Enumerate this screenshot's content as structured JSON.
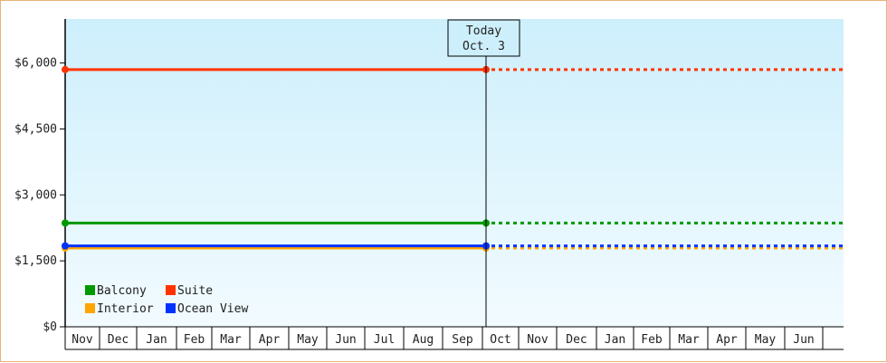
{
  "chart_data": {
    "type": "line",
    "title": "",
    "xlabel": "",
    "ylabel": "",
    "ylim": [
      0,
      7000
    ],
    "yticks": [
      {
        "value": 0,
        "label": "$0"
      },
      {
        "value": 1500,
        "label": "$1,500"
      },
      {
        "value": 3000,
        "label": "$3,000"
      },
      {
        "value": 4500,
        "label": "$4,500"
      },
      {
        "value": 6000,
        "label": "$6,000"
      }
    ],
    "months": [
      "Nov",
      "Dec",
      "Jan",
      "Feb",
      "Mar",
      "Apr",
      "May",
      "Jun",
      "Jul",
      "Aug",
      "Sep",
      "Oct",
      "Nov",
      "Dec",
      "Jan",
      "Feb",
      "Mar",
      "Apr",
      "May",
      "Jun"
    ],
    "today": {
      "line1": "Today",
      "line2": "Oct. 3",
      "month_position": 11.1
    },
    "series": [
      {
        "name": "Suite",
        "color": "#ff3300",
        "value": 5850
      },
      {
        "name": "Balcony",
        "color": "#009900",
        "value": 2360
      },
      {
        "name": "Ocean View",
        "color": "#0033ff",
        "value": 1840
      },
      {
        "name": "Interior",
        "color": "#ffa500",
        "value": 1790
      }
    ],
    "legend": {
      "placement": "bottom-left",
      "rows": [
        [
          "Balcony",
          "Suite"
        ],
        [
          "Interior",
          "Ocean View"
        ]
      ]
    },
    "grid": false,
    "background_gradient": [
      "#cdeffc",
      "#f2fbff"
    ],
    "past_style": "solid",
    "future_style": "dotted"
  }
}
